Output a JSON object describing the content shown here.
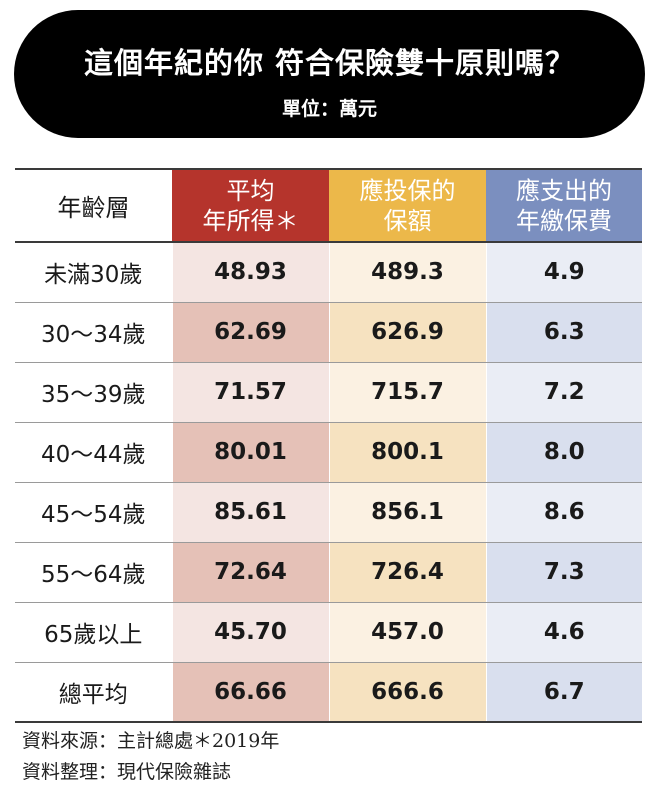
{
  "title": "這個年紀的你 符合保險雙十原則嗎？",
  "subtitle": "單位：萬元",
  "chart_data": {
    "type": "table",
    "columns": [
      "年齡層",
      "平均\n年所得＊",
      "應投保的\n保額",
      "應支出的\n年繳保費"
    ],
    "rows": [
      {
        "age": "未滿30歲",
        "income": "48.93",
        "coverage": "489.3",
        "premium": "4.9"
      },
      {
        "age": "30～34歲",
        "income": "62.69",
        "coverage": "626.9",
        "premium": "6.3"
      },
      {
        "age": "35～39歲",
        "income": "71.57",
        "coverage": "715.7",
        "premium": "7.2"
      },
      {
        "age": "40～44歲",
        "income": "80.01",
        "coverage": "800.1",
        "premium": "8.0"
      },
      {
        "age": "45～54歲",
        "income": "85.61",
        "coverage": "856.1",
        "premium": "8.6"
      },
      {
        "age": "55～64歲",
        "income": "72.64",
        "coverage": "726.4",
        "premium": "7.3"
      },
      {
        "age": "65歲以上",
        "income": "45.70",
        "coverage": "457.0",
        "premium": "4.6"
      },
      {
        "age": "總平均",
        "income": "66.66",
        "coverage": "666.6",
        "premium": "6.7"
      }
    ],
    "column_colors": [
      "#ffffff",
      "#b5342c",
      "#ecb84a",
      "#7b8fbf"
    ]
  },
  "notes": [
    "資料來源：主計總處＊2019年",
    "資料整理：現代保險雜誌"
  ]
}
